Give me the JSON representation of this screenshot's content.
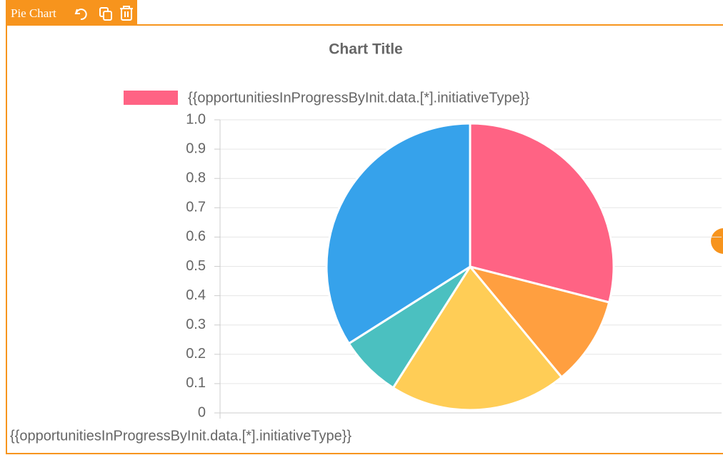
{
  "toolbar": {
    "label": "Pie Chart"
  },
  "chart_data": {
    "type": "pie",
    "title": "Chart Title",
    "series": [
      {
        "name": "{{opportunitiesInProgressByInit.data.[*].initiativeType}}",
        "color": "#ff6384",
        "values": [
          29,
          10,
          20,
          7,
          34
        ]
      }
    ],
    "colors": [
      "#ff6384",
      "#ff9f40",
      "#ffcd56",
      "#4bc0c0",
      "#36a2eb"
    ],
    "xlabel": "{{opportunitiesInProgressByInit.data.[*].initiativeType}}",
    "ylim": [
      0,
      1
    ],
    "yticks": [
      0,
      0.1,
      0.2,
      0.3,
      0.4,
      0.5,
      0.6,
      0.7,
      0.8,
      0.9,
      {
        "value": 1,
        "label": "1.0"
      }
    ],
    "grid": true
  }
}
